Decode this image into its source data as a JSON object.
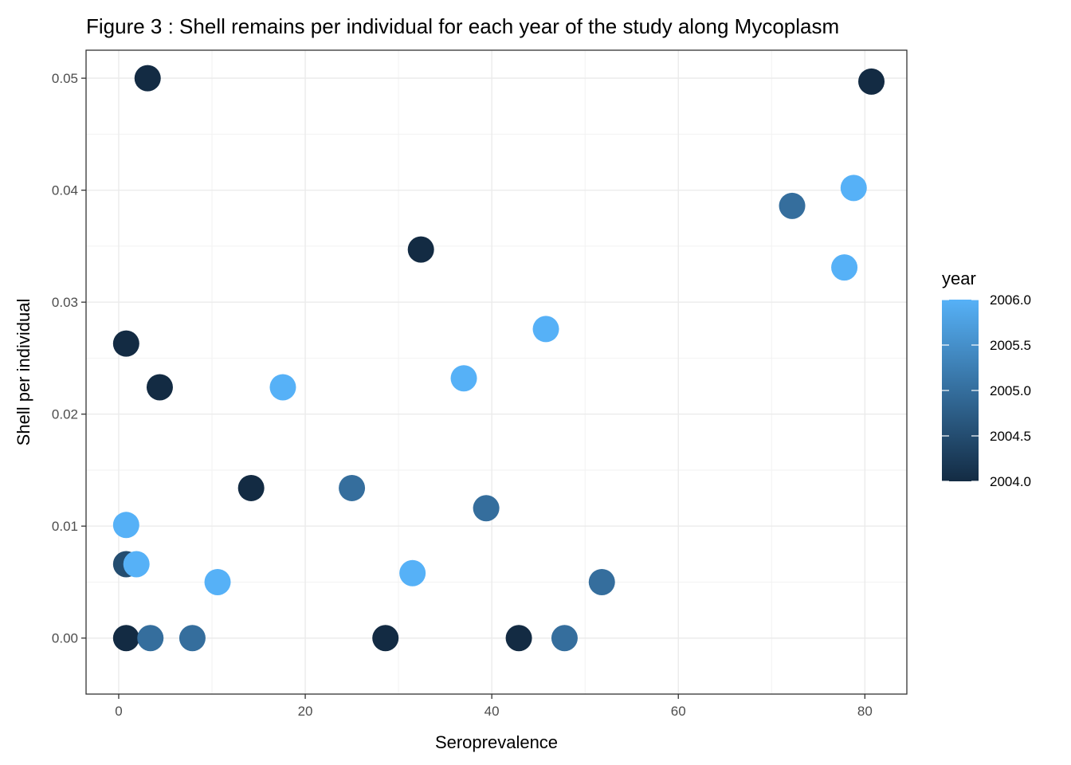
{
  "chart_data": {
    "type": "scatter",
    "title": "Figure 3 : Shell remains per individual for each year of the study along Mycoplasm",
    "xlabel": "Seroprevalence",
    "ylabel": "Shell per individual",
    "xlim": [
      -3.5,
      84.5
    ],
    "ylim": [
      -0.005,
      0.0525
    ],
    "x_ticks": [
      0,
      20,
      40,
      60,
      80
    ],
    "y_ticks": [
      0.0,
      0.01,
      0.02,
      0.03,
      0.04,
      0.05
    ],
    "x_tick_labels": [
      "0",
      "20",
      "40",
      "60",
      "80"
    ],
    "y_tick_labels": [
      "0.00",
      "0.01",
      "0.02",
      "0.03",
      "0.04",
      "0.05"
    ],
    "grid": true,
    "legend": {
      "title": "year",
      "placement": "right",
      "type": "colorbar",
      "range": [
        2004.0,
        2006.0
      ],
      "breaks": [
        2004.0,
        2004.5,
        2005.0,
        2005.5,
        2006.0
      ],
      "break_labels": [
        "2004.0",
        "2004.5",
        "2005.0",
        "2005.5",
        "2006.0"
      ],
      "low_color": "#132B43",
      "high_color": "#56B1F7"
    },
    "points": [
      {
        "x": 3.1,
        "y": 0.05,
        "year": 2004
      },
      {
        "x": 80.7,
        "y": 0.0497,
        "year": 2004
      },
      {
        "x": 72.2,
        "y": 0.0386,
        "year": 2005
      },
      {
        "x": 78.8,
        "y": 0.0402,
        "year": 2006
      },
      {
        "x": 77.8,
        "y": 0.0331,
        "year": 2006
      },
      {
        "x": 32.4,
        "y": 0.0347,
        "year": 2004
      },
      {
        "x": 0.8,
        "y": 0.0263,
        "year": 2004
      },
      {
        "x": 4.4,
        "y": 0.0224,
        "year": 2004
      },
      {
        "x": 17.6,
        "y": 0.0224,
        "year": 2006
      },
      {
        "x": 37.0,
        "y": 0.0232,
        "year": 2006
      },
      {
        "x": 45.8,
        "y": 0.0276,
        "year": 2006
      },
      {
        "x": 14.2,
        "y": 0.0134,
        "year": 2004
      },
      {
        "x": 25.0,
        "y": 0.0134,
        "year": 2005
      },
      {
        "x": 39.4,
        "y": 0.0116,
        "year": 2005
      },
      {
        "x": 0.8,
        "y": 0.0101,
        "year": 2006
      },
      {
        "x": 0.8,
        "y": 0.0066,
        "year": 2004.5
      },
      {
        "x": 1.9,
        "y": 0.0066,
        "year": 2006
      },
      {
        "x": 10.6,
        "y": 0.005,
        "year": 2006
      },
      {
        "x": 31.5,
        "y": 0.0058,
        "year": 2006
      },
      {
        "x": 51.8,
        "y": 0.005,
        "year": 2005
      },
      {
        "x": 0.8,
        "y": 0.0,
        "year": 2004
      },
      {
        "x": 3.4,
        "y": 0.0,
        "year": 2005
      },
      {
        "x": 7.9,
        "y": 0.0,
        "year": 2005
      },
      {
        "x": 28.6,
        "y": 0.0,
        "year": 2004
      },
      {
        "x": 42.9,
        "y": 0.0,
        "year": 2004
      },
      {
        "x": 47.8,
        "y": 0.0,
        "year": 2005
      }
    ]
  }
}
